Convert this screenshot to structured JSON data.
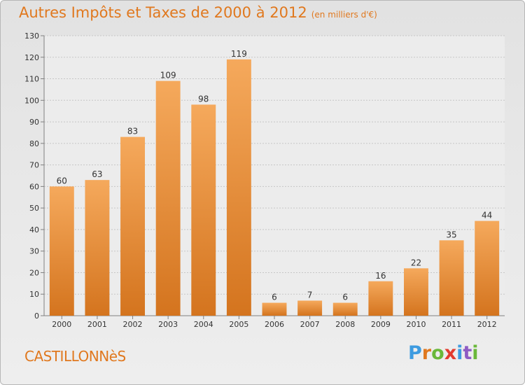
{
  "header": {
    "title": "Autres Impôts et Taxes de 2000 à 2012",
    "unit": "(en milliers d'€)"
  },
  "footer": {
    "commune": "CASTILLONNèS",
    "logo": "Proxiti"
  },
  "colors": {
    "accent": "#e0781e",
    "bar_top": "#f5a95c",
    "bar_bottom": "#d4741e",
    "logo_letters": [
      "#3d9be0",
      "#e0781e",
      "#6ab83a",
      "#e23b2e",
      "#3d9be0",
      "#8e5cc4",
      "#6ab83a"
    ]
  },
  "chart_data": {
    "type": "bar",
    "categories": [
      "2000",
      "2001",
      "2002",
      "2003",
      "2004",
      "2005",
      "2006",
      "2007",
      "2008",
      "2009",
      "2010",
      "2011",
      "2012"
    ],
    "values": [
      60,
      63,
      83,
      109,
      98,
      119,
      6,
      7,
      6,
      16,
      22,
      35,
      44
    ],
    "title": "Autres Impôts et Taxes de 2000 à 2012",
    "subtitle": "(en milliers d'€)",
    "ylim": [
      0,
      130
    ],
    "yticks": [
      0,
      10,
      20,
      30,
      40,
      50,
      60,
      70,
      80,
      90,
      100,
      110,
      120,
      130
    ],
    "grid": true
  }
}
